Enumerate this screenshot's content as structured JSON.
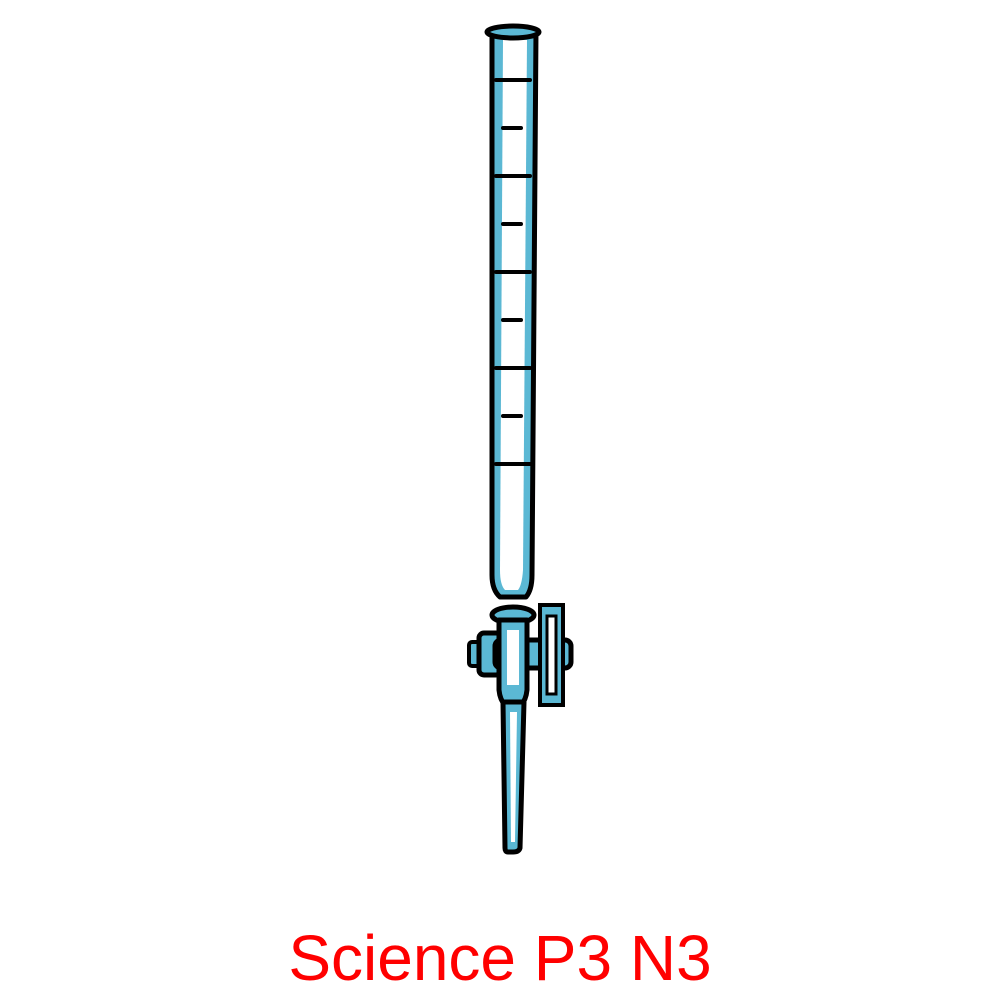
{
  "figure": {
    "subject": "burette-icon",
    "graduation_marks": 9,
    "colors": {
      "glass": "#5bb8d4",
      "glass_highlight": "#ffffff",
      "outline": "#000000"
    }
  },
  "caption": {
    "text": "Science P3 N3",
    "color": "#ff0000"
  }
}
